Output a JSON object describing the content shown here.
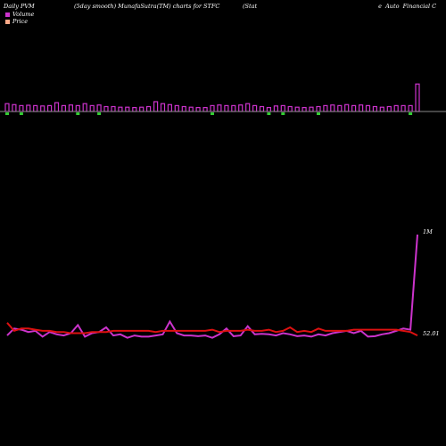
{
  "header": {
    "left": "Daily PVM",
    "center": "(5day smooth) MunafaSutra(TM) charts for STFC",
    "right_prefix": "(Stat",
    "right_suffix": "e  Auto  Financial C"
  },
  "legend": {
    "volume_label": "Volume",
    "price_label": "Price",
    "volume_color": "#cc33cc",
    "price_color": "#ffaa88"
  },
  "chart_data": [
    {
      "type": "bar",
      "description_panel": "volume",
      "baseline_color": "#888888",
      "up_color": "#cc33cc",
      "down_color": "#33cc33",
      "values": [
        0.4,
        0.35,
        0.3,
        0.32,
        0.3,
        0.28,
        0.3,
        0.45,
        0.3,
        0.33,
        0.3,
        0.4,
        0.3,
        0.33,
        0.25,
        0.25,
        0.22,
        0.22,
        0.2,
        0.22,
        0.25,
        0.5,
        0.4,
        0.35,
        0.3,
        0.25,
        0.22,
        0.2,
        0.2,
        0.3,
        0.33,
        0.3,
        0.3,
        0.33,
        0.4,
        0.3,
        0.25,
        0.2,
        0.28,
        0.3,
        0.25,
        0.22,
        0.2,
        0.22,
        0.25,
        0.3,
        0.33,
        0.3,
        0.35,
        0.3,
        0.33,
        0.3,
        0.25,
        0.22,
        0.25,
        0.3,
        0.3,
        0.3,
        1.4
      ],
      "down_flags": [
        1,
        0,
        1,
        0,
        0,
        0,
        0,
        0,
        0,
        0,
        1,
        0,
        0,
        1,
        0,
        0,
        0,
        0,
        0,
        0,
        0,
        0,
        0,
        0,
        0,
        0,
        0,
        0,
        0,
        1,
        0,
        0,
        0,
        0,
        0,
        0,
        0,
        1,
        0,
        1,
        0,
        0,
        0,
        0,
        1,
        0,
        0,
        0,
        0,
        0,
        0,
        0,
        0,
        0,
        0,
        0,
        0,
        1,
        0
      ]
    },
    {
      "type": "line",
      "description_panel": "price and volume (smoothed)",
      "series": [
        {
          "key": "volume",
          "color": "#cc33cc",
          "label": "1M",
          "values": [
            0.15,
            0.45,
            0.4,
            0.3,
            0.35,
            0.1,
            0.3,
            0.2,
            0.15,
            0.25,
            0.6,
            0.1,
            0.25,
            0.3,
            0.5,
            0.15,
            0.2,
            0.05,
            0.15,
            0.1,
            0.1,
            0.15,
            0.2,
            0.75,
            0.25,
            0.15,
            0.15,
            0.12,
            0.15,
            0.05,
            0.2,
            0.45,
            0.12,
            0.15,
            0.55,
            0.2,
            0.22,
            0.2,
            0.15,
            0.25,
            0.2,
            0.12,
            0.15,
            0.1,
            0.2,
            0.15,
            0.25,
            0.3,
            0.35,
            0.25,
            0.35,
            0.1,
            0.12,
            0.2,
            0.25,
            0.35,
            0.45,
            0.4,
            4.5
          ]
        },
        {
          "key": "price",
          "color": "#dd1111",
          "label": "52.01",
          "values": [
            0.7,
            0.35,
            0.45,
            0.45,
            0.4,
            0.35,
            0.35,
            0.3,
            0.3,
            0.25,
            0.25,
            0.25,
            0.3,
            0.3,
            0.3,
            0.35,
            0.35,
            0.35,
            0.35,
            0.35,
            0.35,
            0.3,
            0.35,
            0.35,
            0.35,
            0.35,
            0.35,
            0.35,
            0.35,
            0.4,
            0.3,
            0.35,
            0.35,
            0.35,
            0.4,
            0.35,
            0.35,
            0.4,
            0.3,
            0.35,
            0.5,
            0.3,
            0.35,
            0.3,
            0.45,
            0.35,
            0.35,
            0.35,
            0.35,
            0.4,
            0.4,
            0.4,
            0.4,
            0.4,
            0.4,
            0.4,
            0.35,
            0.3,
            0.15
          ]
        }
      ]
    }
  ]
}
